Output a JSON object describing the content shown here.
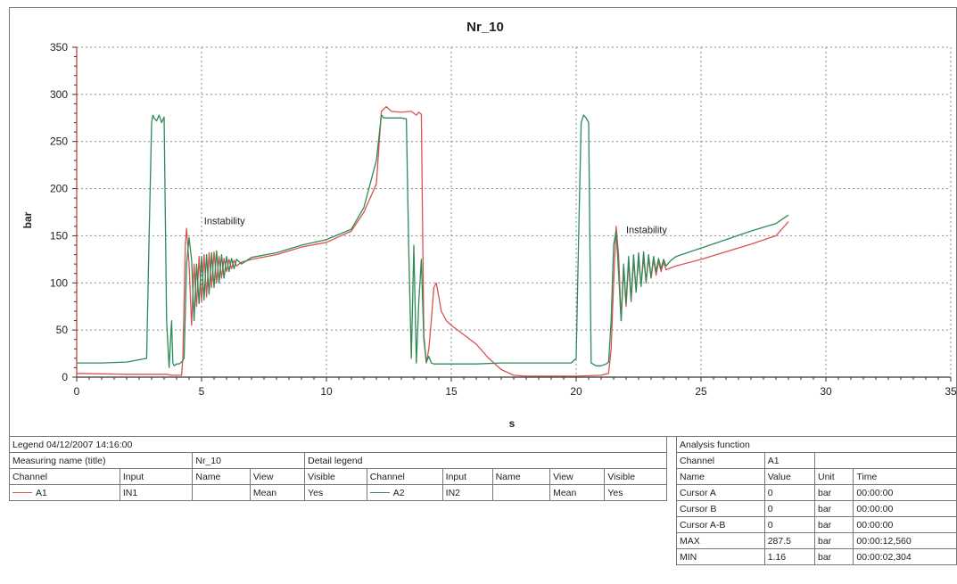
{
  "chart_data": {
    "type": "line",
    "title": "Nr_10",
    "xlabel": "s",
    "ylabel": "bar",
    "xlim": [
      0,
      35
    ],
    "ylim": [
      0,
      350
    ],
    "xticks": [
      "0",
      "5",
      "10",
      "15",
      "20",
      "25",
      "30",
      "35"
    ],
    "yticks": [
      "0",
      "50",
      "100",
      "150",
      "200",
      "250",
      "300",
      "350"
    ],
    "grid": true,
    "annotations": [
      {
        "text": "Instability",
        "x": 5.1,
        "y": 162
      },
      {
        "text": "Instability",
        "x": 22.0,
        "y": 153
      }
    ],
    "series": [
      {
        "name": "A1",
        "color": "#d9534f",
        "x": [
          0,
          2,
          3.0,
          3.1,
          3.2,
          3.3,
          3.4,
          3.6,
          3.8,
          4.0,
          4.2,
          4.25,
          4.3,
          4.35,
          4.4,
          4.5,
          4.6,
          4.7,
          4.8,
          4.9,
          5.0,
          5.1,
          5.2,
          5.3,
          5.4,
          5.5,
          5.6,
          5.7,
          5.8,
          5.9,
          6.0,
          6.1,
          6.2,
          6.3,
          6.4,
          6.6,
          7,
          8,
          9,
          10,
          11,
          11.5,
          12,
          12.2,
          12.4,
          12.6,
          13,
          13.4,
          13.5,
          13.6,
          13.7,
          13.8,
          13.9,
          14.0,
          14.1,
          14.2,
          14.3,
          14.4,
          14.5,
          14.6,
          14.8,
          15,
          15.5,
          16,
          16.5,
          17,
          17.5,
          18,
          19,
          20,
          21,
          21.3,
          21.4,
          21.5,
          21.6,
          21.7,
          21.8,
          21.9,
          22.0,
          22.1,
          22.2,
          22.3,
          22.4,
          22.5,
          22.6,
          22.7,
          22.8,
          22.9,
          23.0,
          23.1,
          23.2,
          23.3,
          23.4,
          23.5,
          23.6,
          23.8,
          24,
          25,
          26,
          27,
          28,
          28.5
        ],
        "y": [
          4,
          3,
          3,
          3,
          3,
          3,
          3,
          3,
          2,
          2,
          2,
          20,
          80,
          140,
          158,
          120,
          55,
          120,
          75,
          128,
          80,
          130,
          85,
          132,
          95,
          133,
          100,
          128,
          105,
          126,
          112,
          125,
          115,
          124,
          118,
          122,
          125,
          130,
          138,
          143,
          155,
          175,
          205,
          282,
          287,
          282,
          281,
          282,
          280,
          278,
          281,
          279,
          45,
          15,
          30,
          60,
          95,
          100,
          85,
          70,
          60,
          55,
          45,
          35,
          20,
          8,
          2,
          1,
          1,
          1,
          2,
          4,
          30,
          100,
          160,
          130,
          60,
          115,
          75,
          122,
          80,
          124,
          92,
          125,
          98,
          126,
          102,
          126,
          105,
          125,
          108,
          123,
          112,
          122,
          114,
          116,
          118,
          125,
          133,
          141,
          150,
          165
        ]
      },
      {
        "name": "A2",
        "color": "#2e8b57",
        "x": [
          0,
          1,
          2,
          2.8,
          2.9,
          3.0,
          3.05,
          3.1,
          3.2,
          3.3,
          3.4,
          3.5,
          3.6,
          3.7,
          3.8,
          3.85,
          3.9,
          4.0,
          4.1,
          4.2,
          4.3,
          4.4,
          4.5,
          4.6,
          4.7,
          4.8,
          4.9,
          5.0,
          5.1,
          5.2,
          5.3,
          5.4,
          5.5,
          5.6,
          5.7,
          5.8,
          5.9,
          6.0,
          6.1,
          6.2,
          6.3,
          6.4,
          6.6,
          7,
          8,
          9,
          10,
          11,
          11.5,
          12,
          12.2,
          12.3,
          13,
          13.2,
          13.3,
          13.4,
          13.5,
          13.6,
          13.7,
          13.8,
          13.9,
          14.0,
          14.1,
          14.2,
          14.3,
          14.4,
          14.5,
          15,
          16,
          17,
          18,
          19,
          19.8,
          20.0,
          20.1,
          20.2,
          20.3,
          20.4,
          20.5,
          20.6,
          20.8,
          21.0,
          21.2,
          21.3,
          21.4,
          21.5,
          21.6,
          21.7,
          21.8,
          21.9,
          22.0,
          22.1,
          22.2,
          22.3,
          22.4,
          22.5,
          22.6,
          22.7,
          22.8,
          22.9,
          23.0,
          23.1,
          23.2,
          23.3,
          23.4,
          23.5,
          23.6,
          23.8,
          24,
          25,
          26,
          27,
          28,
          28.5
        ],
        "y": [
          15,
          15,
          16,
          20,
          150,
          270,
          278,
          275,
          272,
          278,
          270,
          276,
          60,
          10,
          60,
          15,
          12,
          14,
          14,
          16,
          20,
          120,
          148,
          125,
          60,
          120,
          78,
          128,
          82,
          130,
          88,
          132,
          95,
          134,
          100,
          130,
          105,
          128,
          112,
          126,
          115,
          125,
          120,
          127,
          132,
          140,
          146,
          157,
          180,
          230,
          278,
          275,
          275,
          274,
          130,
          20,
          140,
          15,
          80,
          125,
          40,
          16,
          22,
          15,
          14,
          14,
          14,
          14,
          14,
          15,
          15,
          15,
          15,
          20,
          150,
          270,
          278,
          275,
          270,
          15,
          12,
          12,
          14,
          16,
          60,
          140,
          155,
          110,
          60,
          120,
          78,
          128,
          82,
          130,
          90,
          132,
          96,
          133,
          100,
          130,
          106,
          128,
          112,
          126,
          115,
          125,
          118,
          124,
          128,
          137,
          146,
          155,
          163,
          172
        ]
      }
    ]
  },
  "legend_table": {
    "title": "Legend  04/12/2007  14:16:00",
    "measuring_name_label": "Measuring name (title)",
    "measuring_name_value": "Nr_10",
    "detail_legend_label": "Detail legend",
    "headers": [
      "Channel",
      "Input",
      "Name",
      "View",
      "Visible",
      "Channel",
      "Input",
      "Name",
      "View",
      "Visible"
    ],
    "row": [
      "A1",
      "IN1",
      "",
      "Mean",
      "Yes",
      "A2",
      "IN2",
      "",
      "Mean",
      "Yes"
    ]
  },
  "analysis_table": {
    "title": "Analysis function",
    "channel_label": "Channel",
    "channel_value": "A1",
    "headers": [
      "Name",
      "Value",
      "Unit",
      "Time"
    ],
    "rows": [
      [
        "Cursor A",
        "0",
        "bar",
        "00:00:00"
      ],
      [
        "Cursor B",
        "0",
        "bar",
        "00:00:00"
      ],
      [
        "Cursor A-B",
        "0",
        "bar",
        "00:00:00"
      ],
      [
        "MAX",
        "287.5",
        "bar",
        "00:00:12,560"
      ],
      [
        "MIN",
        "1.16",
        "bar",
        "00:00:02,304"
      ]
    ]
  }
}
